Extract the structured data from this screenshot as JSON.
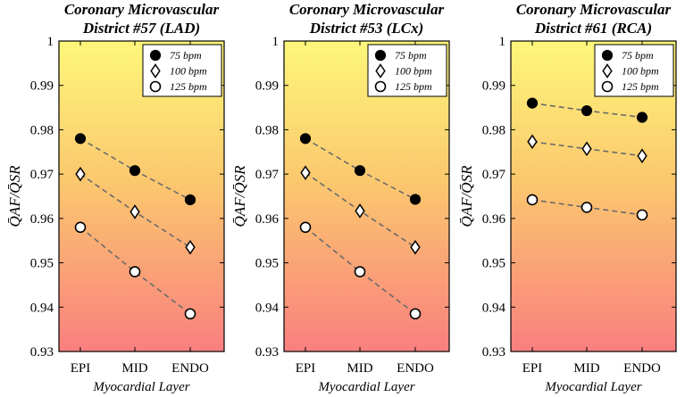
{
  "chart_data": [
    {
      "type": "line",
      "title": [
        "Coronary Microvascular",
        "District #57 (LAD)"
      ],
      "xlabel": "Myocardial Layer",
      "ylabel": "Q̄AF/Q̄SR",
      "categories": [
        "EPI",
        "MID",
        "ENDO"
      ],
      "ylim": [
        0.93,
        1.0
      ],
      "yticks": [
        "0.93",
        "0.94",
        "0.95",
        "0.96",
        "0.97",
        "0.98",
        "0.99",
        "1"
      ],
      "legend_position": "top-right",
      "series": [
        {
          "name": "75 bpm",
          "marker": "filled-circle",
          "values": [
            0.978,
            0.9708,
            0.9642
          ]
        },
        {
          "name": "100 bpm",
          "marker": "diamond",
          "values": [
            0.97,
            0.9615,
            0.9535
          ]
        },
        {
          "name": "125 bpm",
          "marker": "open-circle",
          "values": [
            0.958,
            0.948,
            0.9385
          ]
        }
      ]
    },
    {
      "type": "line",
      "title": [
        "Coronary Microvascular",
        "District #53 (LCx)"
      ],
      "xlabel": "Myocardial Layer",
      "ylabel": "Q̄AF/Q̄SR",
      "categories": [
        "EPI",
        "MID",
        "ENDO"
      ],
      "ylim": [
        0.93,
        1.0
      ],
      "yticks": [
        "0.93",
        "0.94",
        "0.95",
        "0.96",
        "0.97",
        "0.98",
        "0.99",
        "1"
      ],
      "legend_position": "top-right",
      "series": [
        {
          "name": "75 bpm",
          "marker": "filled-circle",
          "values": [
            0.978,
            0.9708,
            0.9643
          ]
        },
        {
          "name": "100 bpm",
          "marker": "diamond",
          "values": [
            0.9703,
            0.9617,
            0.9535
          ]
        },
        {
          "name": "125 bpm",
          "marker": "open-circle",
          "values": [
            0.958,
            0.948,
            0.9385
          ]
        }
      ]
    },
    {
      "type": "line",
      "title": [
        "Coronary Microvascular",
        "District #61 (RCA)"
      ],
      "xlabel": "Myocardial Layer",
      "ylabel": "Q̄AF/Q̄SR",
      "categories": [
        "EPI",
        "MID",
        "ENDO"
      ],
      "ylim": [
        0.93,
        1.0
      ],
      "yticks": [
        "0.93",
        "0.94",
        "0.95",
        "0.96",
        "0.97",
        "0.98",
        "0.99",
        "1"
      ],
      "legend_position": "top-right",
      "series": [
        {
          "name": "75 bpm",
          "marker": "filled-circle",
          "values": [
            0.986,
            0.9843,
            0.9828
          ]
        },
        {
          "name": "100 bpm",
          "marker": "diamond",
          "values": [
            0.9773,
            0.9757,
            0.9741
          ]
        },
        {
          "name": "125 bpm",
          "marker": "open-circle",
          "values": [
            0.9642,
            0.9625,
            0.9608
          ]
        }
      ]
    }
  ]
}
